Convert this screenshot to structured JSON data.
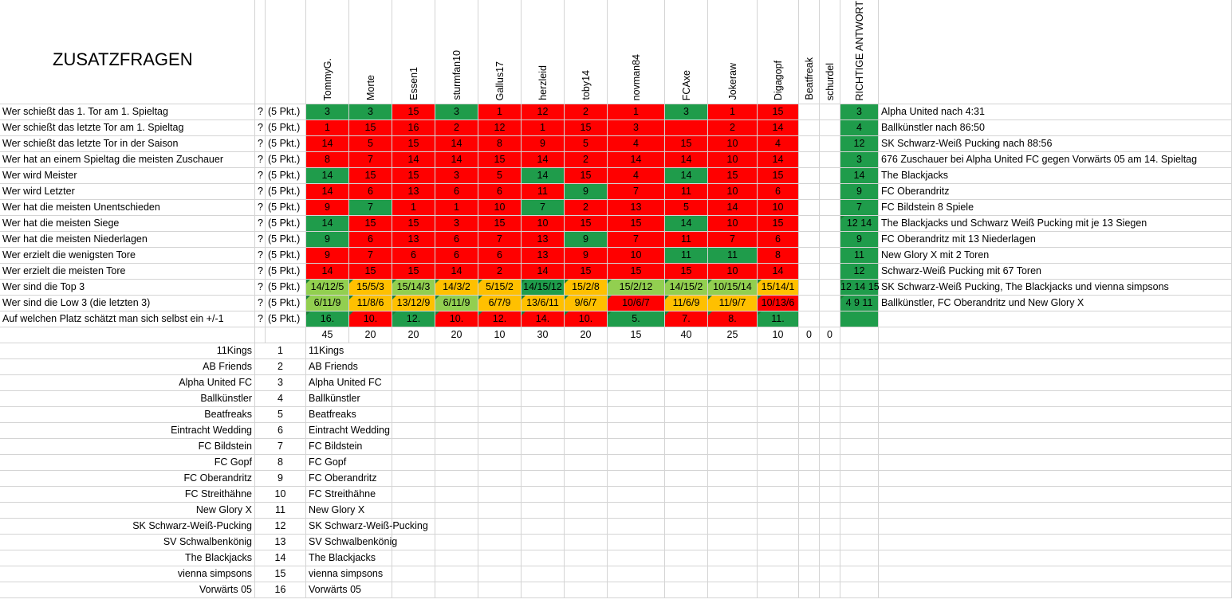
{
  "sheet_title": "ZUSATZFRAGEN",
  "players": [
    "TommyG.",
    "Morte",
    "Essen1",
    "sturmfan10",
    "Gallus17",
    "herzleid",
    "toby14",
    "novman84",
    "FCAxe",
    "Jokeraw",
    "Digagopf",
    "Beatfreak",
    "schurdel"
  ],
  "answer_header": "RICHTIGE ANTWORT",
  "questions": [
    {
      "text": "Wer schießt das 1. Tor am 1. Spieltag",
      "mark": "?",
      "pts": "(5 Pkt.)",
      "answers": [
        "3",
        "3",
        "15",
        "3",
        "1",
        "12",
        "2",
        "1",
        "3",
        "1",
        "15",
        "",
        ""
      ],
      "colors": [
        "g",
        "g",
        "r",
        "g",
        "r",
        "r",
        "r",
        "r",
        "g",
        "r",
        "r",
        "",
        ""
      ],
      "correct": "3",
      "correct_text": "Alpha United nach 4:31"
    },
    {
      "text": "Wer schießt das letzte Tor am 1. Spieltag",
      "mark": "?",
      "pts": "(5 Pkt.)",
      "answers": [
        "1",
        "15",
        "16",
        "2",
        "12",
        "1",
        "15",
        "3",
        "",
        "2",
        "14",
        "",
        ""
      ],
      "colors": [
        "r",
        "r",
        "r",
        "r",
        "r",
        "r",
        "r",
        "r",
        "r",
        "r",
        "r",
        "",
        ""
      ],
      "correct": "4",
      "correct_text": "Ballkünstler nach 86:50"
    },
    {
      "text": "Wer schießt das letzte Tor in der Saison",
      "mark": "?",
      "pts": "(5 Pkt.)",
      "answers": [
        "14",
        "5",
        "15",
        "14",
        "8",
        "9",
        "5",
        "4",
        "15",
        "10",
        "4",
        "",
        ""
      ],
      "colors": [
        "r",
        "r",
        "r",
        "r",
        "r",
        "r",
        "r",
        "r",
        "r",
        "r",
        "r",
        "",
        ""
      ],
      "correct": "12",
      "correct_text": "SK Schwarz-Weiß Pucking nach 88:56"
    },
    {
      "text": "Wer hat an einem Spieltag die meisten Zuschauer",
      "mark": "?",
      "pts": "(5 Pkt.)",
      "answers": [
        "8",
        "7",
        "14",
        "14",
        "15",
        "14",
        "2",
        "14",
        "14",
        "10",
        "14",
        "",
        ""
      ],
      "colors": [
        "r",
        "r",
        "r",
        "r",
        "r",
        "r",
        "r",
        "r",
        "r",
        "r",
        "r",
        "",
        ""
      ],
      "correct": "3",
      "correct_text": "676 Zuschauer bei Alpha United FC gegen Vorwärts 05 am 14. Spieltag"
    },
    {
      "text": "Wer wird Meister",
      "mark": "?",
      "pts": "(5 Pkt.)",
      "answers": [
        "14",
        "15",
        "15",
        "3",
        "5",
        "14",
        "15",
        "4",
        "14",
        "15",
        "15",
        "",
        ""
      ],
      "colors": [
        "g",
        "r",
        "r",
        "r",
        "r",
        "g",
        "r",
        "r",
        "g",
        "r",
        "r",
        "",
        ""
      ],
      "correct": "14",
      "correct_text": "The Blackjacks"
    },
    {
      "text": "Wer wird Letzter",
      "mark": "?",
      "pts": "(5 Pkt.)",
      "answers": [
        "14",
        "6",
        "13",
        "6",
        "6",
        "11",
        "9",
        "7",
        "11",
        "10",
        "6",
        "",
        ""
      ],
      "colors": [
        "r",
        "r",
        "r",
        "r",
        "r",
        "r",
        "g",
        "r",
        "r",
        "r",
        "r",
        "",
        ""
      ],
      "correct": "9",
      "correct_text": "FC Oberandritz"
    },
    {
      "text": "Wer hat die meisten Unentschieden",
      "mark": "?",
      "pts": "(5 Pkt.)",
      "answers": [
        "9",
        "7",
        "1",
        "1",
        "10",
        "7",
        "2",
        "13",
        "5",
        "14",
        "10",
        "",
        ""
      ],
      "colors": [
        "r",
        "g",
        "r",
        "r",
        "r",
        "g",
        "r",
        "r",
        "r",
        "r",
        "r",
        "",
        ""
      ],
      "correct": "7",
      "correct_text": "FC Bildstein 8 Spiele"
    },
    {
      "text": "Wer hat die meisten Siege",
      "mark": "?",
      "pts": "(5 Pkt.)",
      "answers": [
        "14",
        "15",
        "15",
        "3",
        "15",
        "10",
        "15",
        "15",
        "14",
        "10",
        "15",
        "",
        ""
      ],
      "colors": [
        "g",
        "r",
        "r",
        "r",
        "r",
        "r",
        "r",
        "r",
        "g",
        "r",
        "r",
        "",
        ""
      ],
      "correct": "12 14",
      "correct_text": "The Blackjacks und Schwarz Weiß Pucking mit je 13 Siegen"
    },
    {
      "text": "Wer hat die meisten Niederlagen",
      "mark": "?",
      "pts": "(5 Pkt.)",
      "answers": [
        "9",
        "6",
        "13",
        "6",
        "7",
        "13",
        "9",
        "7",
        "11",
        "7",
        "6",
        "",
        ""
      ],
      "colors": [
        "g",
        "r",
        "r",
        "r",
        "r",
        "r",
        "g",
        "r",
        "r",
        "r",
        "r",
        "",
        ""
      ],
      "correct": "9",
      "correct_text": "FC Oberandritz mit 13 Niederlagen"
    },
    {
      "text": "Wer erzielt die wenigsten Tore",
      "mark": "?",
      "pts": "(5 Pkt.)",
      "answers": [
        "9",
        "7",
        "6",
        "6",
        "6",
        "13",
        "9",
        "10",
        "11",
        "11",
        "8",
        "",
        ""
      ],
      "colors": [
        "r",
        "r",
        "r",
        "r",
        "r",
        "r",
        "r",
        "r",
        "g",
        "g",
        "r",
        "",
        ""
      ],
      "correct": "11",
      "correct_text": "New Glory X mit 2 Toren"
    },
    {
      "text": "Wer erzielt die meisten Tore",
      "mark": "?",
      "pts": "(5 Pkt.)",
      "answers": [
        "14",
        "15",
        "15",
        "14",
        "2",
        "14",
        "15",
        "15",
        "15",
        "10",
        "14",
        "",
        ""
      ],
      "colors": [
        "r",
        "r",
        "r",
        "r",
        "r",
        "r",
        "r",
        "r",
        "r",
        "r",
        "r",
        "",
        ""
      ],
      "correct": "12",
      "correct_text": "Schwarz-Weiß Pucking mit 67 Toren"
    },
    {
      "text": "Wer sind die Top 3",
      "mark": "?",
      "pts": "(5 Pkt.)",
      "answers": [
        "14/12/5",
        "15/5/3",
        "15/14/3",
        "14/3/2",
        "5/15/2",
        "14/15/12",
        "15/2/8",
        "15/2/12",
        "14/15/2",
        "10/15/14",
        "15/14/1",
        "",
        ""
      ],
      "colors": [
        "l",
        "y",
        "l",
        "y",
        "y",
        "g",
        "y",
        "l",
        "l",
        "l",
        "y",
        "",
        ""
      ],
      "correct": "12 14 15",
      "correct_text": "SK Schwarz-Weiß Pucking, The Blackjacks und vienna simpsons"
    },
    {
      "text": "Wer sind die Low 3 (die letzten 3)",
      "mark": "?",
      "pts": "(5 Pkt.)",
      "answers": [
        "6/11/9",
        "11/8/6",
        "13/12/9",
        "6/11/9",
        "6/7/9",
        "13/6/11",
        "9/6/7",
        "10/6/7",
        "11/6/9",
        "11/9/7",
        "10/13/6",
        "",
        ""
      ],
      "colors": [
        "l",
        "y",
        "y",
        "l",
        "y",
        "y",
        "y",
        "r",
        "y",
        "y",
        "r",
        "",
        ""
      ],
      "correct": "4 9 11",
      "correct_text": "Ballkünstler, FC Oberandritz und New Glory X"
    },
    {
      "text": "Auf welchen Platz schätzt man sich selbst ein +/-1",
      "mark": "?",
      "pts": "(5 Pkt.)",
      "answers": [
        "16.",
        "10.",
        "12.",
        "10.",
        "12.",
        "14.",
        "10.",
        "5.",
        "7.",
        "8.",
        "11.",
        "",
        ""
      ],
      "colors": [
        "g",
        "r",
        "g",
        "r",
        "r",
        "r",
        "r",
        "g",
        "r",
        "r",
        "g",
        "",
        ""
      ],
      "correct": "",
      "correct_text": ""
    }
  ],
  "totals": [
    "45",
    "20",
    "20",
    "20",
    "10",
    "30",
    "20",
    "15",
    "40",
    "25",
    "10",
    "0",
    "0"
  ],
  "teams": [
    {
      "name": "11Kings",
      "num": "1"
    },
    {
      "name": "AB Friends",
      "num": "2"
    },
    {
      "name": "Alpha United FC",
      "num": "3"
    },
    {
      "name": "Ballkünstler",
      "num": "4"
    },
    {
      "name": "Beatfreaks",
      "num": "5"
    },
    {
      "name": "Eintracht Wedding",
      "num": "6"
    },
    {
      "name": "FC Bildstein",
      "num": "7"
    },
    {
      "name": "FC Gopf",
      "num": "8"
    },
    {
      "name": "FC Oberandritz",
      "num": "9"
    },
    {
      "name": "FC Streithähne",
      "num": "10"
    },
    {
      "name": "New Glory X",
      "num": "11"
    },
    {
      "name": "SK Schwarz-Weiß-Pucking",
      "num": "12"
    },
    {
      "name": "SV Schwalbenkönig",
      "num": "13"
    },
    {
      "name": "The Blackjacks",
      "num": "14"
    },
    {
      "name": "vienna simpsons",
      "num": "15"
    },
    {
      "name": "Vorwärts 05",
      "num": "16"
    }
  ],
  "colors": {
    "red": "#ff0000",
    "green": "#1f9c4b",
    "light_green": "#92cf50",
    "yellow": "#ffc000",
    "grid": "#d4d4d4"
  }
}
